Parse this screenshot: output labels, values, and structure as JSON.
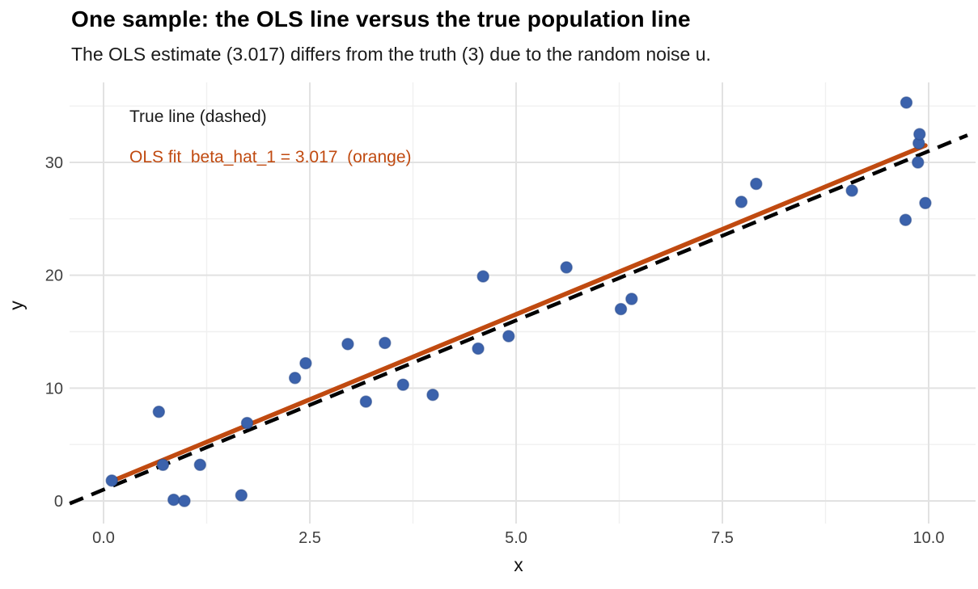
{
  "title": "One sample: the OLS line versus the true population line",
  "subtitle": "The OLS estimate (3.017) differs from the truth (3) due to the random noise u.",
  "annotations": {
    "true_line_label": "True line (dashed)",
    "ols_line_label": "OLS fit  beta_hat_1 = 3.017  (orange)"
  },
  "colors": {
    "point_fill": "#3B62AC",
    "point_edge": "#2B4C8C",
    "ols_line": "#C04A10",
    "true_line": "#000000",
    "grid_major": "#E2E2E2",
    "grid_minor": "#F0F0F0",
    "tick_label": "#404040",
    "annotation_ols": "#C04A10",
    "annotation_true": "#1b1b1b"
  },
  "chart_data": {
    "type": "scatter",
    "title": "One sample: the OLS line versus the true population line",
    "subtitle": "The OLS estimate (3.017) differs from the truth (3) due to the random noise u.",
    "xlabel": "x",
    "ylabel": "y",
    "xlim": [
      -0.42,
      10.6
    ],
    "ylim": [
      -1.8,
      37.2
    ],
    "x_major_ticks": [
      0.0,
      2.5,
      5.0,
      7.5,
      10.0
    ],
    "x_tick_labels": [
      "0.0",
      "2.5",
      "5.0",
      "7.5",
      "10.0"
    ],
    "x_minor_ticks": [
      1.25,
      3.75,
      6.25,
      8.75
    ],
    "y_major_ticks": [
      0,
      10,
      20,
      30
    ],
    "y_tick_labels": [
      "0",
      "10",
      "20",
      "30"
    ],
    "y_minor_ticks": [
      5,
      15,
      25,
      35
    ],
    "grid": "on",
    "legend_position": "inside-top-left",
    "points": [
      [
        0.1,
        1.8
      ],
      [
        0.67,
        7.9
      ],
      [
        0.72,
        3.2
      ],
      [
        0.85,
        0.1
      ],
      [
        0.98,
        0.0
      ],
      [
        1.17,
        3.2
      ],
      [
        1.67,
        0.5
      ],
      [
        1.74,
        6.9
      ],
      [
        2.32,
        10.9
      ],
      [
        2.45,
        12.2
      ],
      [
        2.96,
        13.9
      ],
      [
        3.18,
        8.8
      ],
      [
        3.41,
        14.0
      ],
      [
        3.63,
        10.3
      ],
      [
        3.99,
        9.4
      ],
      [
        4.54,
        13.5
      ],
      [
        4.6,
        19.9
      ],
      [
        4.91,
        14.6
      ],
      [
        5.61,
        20.7
      ],
      [
        6.27,
        17.0
      ],
      [
        6.4,
        17.9
      ],
      [
        7.73,
        26.5
      ],
      [
        7.91,
        28.1
      ],
      [
        9.07,
        27.5
      ],
      [
        9.72,
        24.9
      ],
      [
        9.73,
        35.3
      ],
      [
        9.87,
        30.0
      ],
      [
        9.88,
        31.7
      ],
      [
        9.89,
        32.5
      ],
      [
        9.96,
        26.4
      ]
    ],
    "true_line": {
      "label": "True line (dashed)",
      "intercept": 1,
      "slope": 3,
      "x_start": -0.41,
      "x_end": 10.47,
      "style": "dashed"
    },
    "ols_line": {
      "label": "OLS fit",
      "intercept": 1.45,
      "slope": 3.017,
      "x_start": 0.1,
      "x_end": 9.96,
      "style": "solid"
    }
  }
}
